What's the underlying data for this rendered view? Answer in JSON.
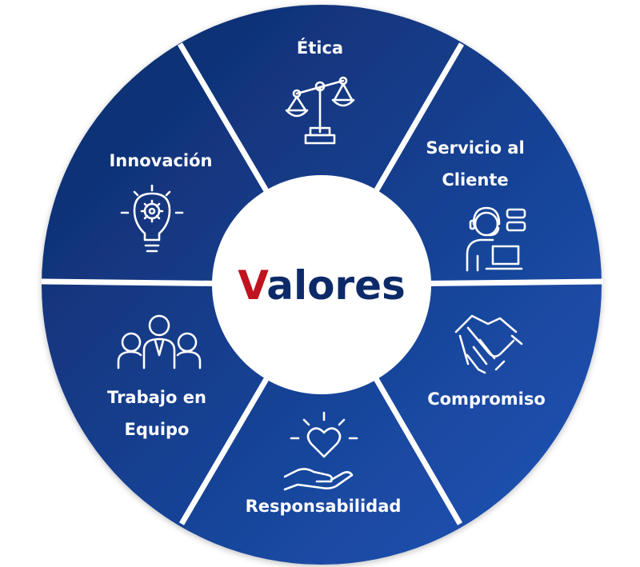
{
  "center": {
    "first_letter": "V",
    "rest": "alores",
    "first_letter_color": "#c0121f",
    "rest_color": "#0d2a68"
  },
  "colors": {
    "wheel_dark": "#0d2a68",
    "wheel_light": "#1f55b8",
    "divider": "#ffffff"
  },
  "segments": [
    {
      "id": "etica",
      "lines": [
        "Ética"
      ],
      "icon": "scales-of-justice-icon"
    },
    {
      "id": "servicio",
      "lines": [
        "Servicio al",
        "Cliente"
      ],
      "icon": "customer-service-agent-icon"
    },
    {
      "id": "compromiso",
      "lines": [
        "Compromiso"
      ],
      "icon": "handshake-icon"
    },
    {
      "id": "responsabilidad",
      "lines": [
        "Responsabilidad"
      ],
      "icon": "hand-holding-heart-icon"
    },
    {
      "id": "trabajo",
      "lines": [
        "Trabajo en",
        "Equipo"
      ],
      "icon": "team-people-icon"
    },
    {
      "id": "innovacion",
      "lines": [
        "Innovación"
      ],
      "icon": "lightbulb-gear-icon"
    }
  ]
}
